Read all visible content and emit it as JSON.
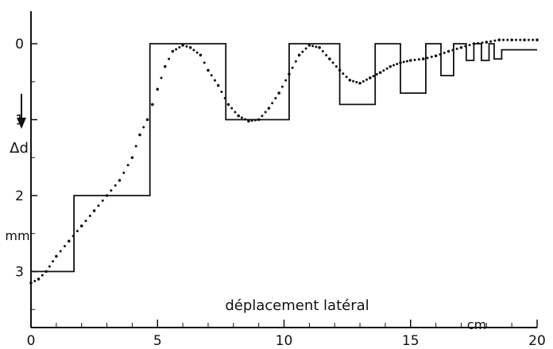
{
  "chart_data": {
    "type": "line",
    "xlabel": "déplacement latéral",
    "xunit": "cm",
    "ylabel": "Δd",
    "yunit": "mm",
    "xlim": [
      0,
      20
    ],
    "ylim": [
      0,
      3.7
    ],
    "y_inverted": true,
    "grid": false,
    "x_ticks": [
      0,
      5,
      10,
      15,
      20
    ],
    "x_ticklabels": [
      "0",
      "5",
      "10",
      "15",
      "20"
    ],
    "y_ticks": [
      0,
      1,
      2,
      3
    ],
    "y_ticklabels": [
      "0",
      "1",
      "2",
      "3"
    ],
    "series": [
      {
        "style": "step",
        "x": [
          0,
          1.7,
          1.7,
          4.7,
          4.7,
          7.7,
          7.7,
          10.2,
          10.2,
          12.2,
          12.2,
          13.6,
          13.6,
          14.6,
          14.6,
          15.6,
          15.6,
          16.2,
          16.2,
          16.7,
          16.7,
          17.2,
          17.2,
          17.5,
          17.5,
          17.8,
          17.8,
          18.1,
          18.1,
          18.3,
          18.3,
          18.6,
          18.6,
          18.8,
          18.8,
          20
        ],
        "y": [
          3.0,
          3.0,
          2.0,
          2.0,
          0.0,
          0.0,
          1.0,
          1.0,
          0.0,
          0.0,
          0.8,
          0.8,
          0.0,
          0.0,
          0.65,
          0.65,
          0.0,
          0.0,
          0.42,
          0.42,
          0.0,
          0.0,
          0.22,
          0.22,
          0.0,
          0.0,
          0.22,
          0.22,
          0.0,
          0.0,
          0.2,
          0.2,
          0.08,
          0.08,
          0.08,
          0.08
        ]
      },
      {
        "style": "dotted",
        "x": [
          0.0,
          0.3,
          0.6,
          1.0,
          1.5,
          2.0,
          2.5,
          3.0,
          3.5,
          4.0,
          4.3,
          4.6,
          4.8,
          5.0,
          5.3,
          5.6,
          6.0,
          6.3,
          6.7,
          7.0,
          7.4,
          7.8,
          8.2,
          8.6,
          9.0,
          9.4,
          9.8,
          10.2,
          10.6,
          11.0,
          11.4,
          11.8,
          12.2,
          12.6,
          13.0,
          13.4,
          13.8,
          14.2,
          14.6,
          15.0,
          15.5,
          16.0,
          16.5,
          17.0,
          17.5,
          18.0,
          18.5,
          19.0,
          19.5,
          20.0
        ],
        "y": [
          3.15,
          3.1,
          3.0,
          2.8,
          2.6,
          2.4,
          2.2,
          2.0,
          1.8,
          1.5,
          1.2,
          1.0,
          0.8,
          0.6,
          0.3,
          0.1,
          0.02,
          0.05,
          0.15,
          0.35,
          0.55,
          0.8,
          0.95,
          1.02,
          1.0,
          0.85,
          0.65,
          0.4,
          0.15,
          0.02,
          0.05,
          0.2,
          0.35,
          0.48,
          0.52,
          0.45,
          0.38,
          0.3,
          0.25,
          0.22,
          0.2,
          0.16,
          0.1,
          0.05,
          0.0,
          -0.02,
          -0.05,
          -0.05,
          -0.05,
          -0.05
        ]
      }
    ]
  }
}
